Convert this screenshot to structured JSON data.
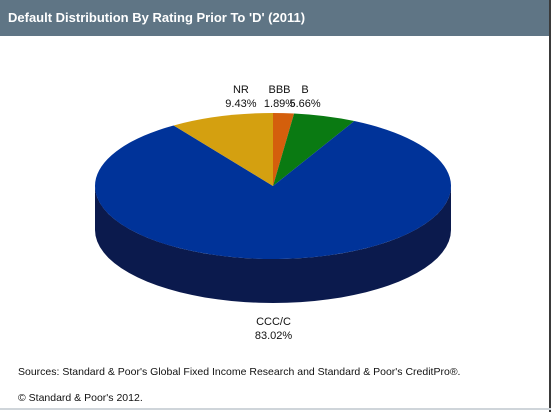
{
  "header": {
    "title": "Default Distribution By Rating Prior To 'D' (2011)"
  },
  "chart_data": {
    "type": "pie",
    "slices": [
      {
        "label": "BBB",
        "value": 1.89,
        "display": "1.89%",
        "color": "#d45f0c",
        "side": "#8a3d08"
      },
      {
        "label": "B",
        "value": 5.66,
        "display": "5.66%",
        "color": "#0a7a12",
        "side": "#064a0b"
      },
      {
        "label": "CCC/C",
        "value": 83.02,
        "display": "83.02%",
        "color": "#003399",
        "side": "#0b1a4d"
      },
      {
        "label": "NR",
        "value": 9.43,
        "display": "9.43%",
        "color": "#d4a010",
        "side": "#8c6a08"
      }
    ],
    "style": "3d-pie"
  },
  "footer": {
    "source": "Sources: Standard & Poor's Global Fixed Income Research and Standard & Poor's CreditPro®.",
    "copyright": "© Standard & Poor's 2012."
  }
}
